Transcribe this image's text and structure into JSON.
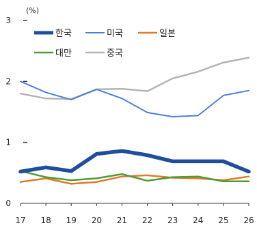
{
  "chart_data": {
    "type": "line",
    "unit_label": "(%)",
    "x": [
      "17",
      "18",
      "19",
      "20",
      "21",
      "22",
      "23",
      "24",
      "25",
      "26"
    ],
    "yticks": [
      "0",
      "1",
      "2",
      "3"
    ],
    "ylim": [
      0,
      3
    ],
    "grid": false,
    "legend_position": "top-left",
    "series": [
      {
        "name": "한국",
        "color": "#1f4e9c",
        "width": 5.5,
        "values": [
          0.52,
          0.59,
          0.53,
          0.81,
          0.86,
          0.79,
          0.69,
          0.69,
          0.69,
          0.52
        ]
      },
      {
        "name": "미국",
        "color": "#4d7fd6",
        "width": 2.0,
        "values": [
          2.0,
          1.82,
          1.7,
          1.87,
          1.72,
          1.49,
          1.42,
          1.44,
          1.77,
          1.85
        ]
      },
      {
        "name": "일본",
        "color": "#e07828",
        "width": 2.5,
        "values": [
          0.35,
          0.41,
          0.32,
          0.35,
          0.44,
          0.46,
          0.42,
          0.41,
          0.38,
          0.44
        ]
      },
      {
        "name": "대만",
        "color": "#4e9a35",
        "width": 2.5,
        "values": [
          0.53,
          0.43,
          0.38,
          0.41,
          0.48,
          0.37,
          0.43,
          0.44,
          0.36,
          0.36
        ]
      },
      {
        "name": "중국",
        "color": "#b4b4b4",
        "width": 2.5,
        "values": [
          1.8,
          1.72,
          1.71,
          1.87,
          1.88,
          1.84,
          2.05,
          2.16,
          2.31,
          2.39
        ]
      }
    ]
  }
}
